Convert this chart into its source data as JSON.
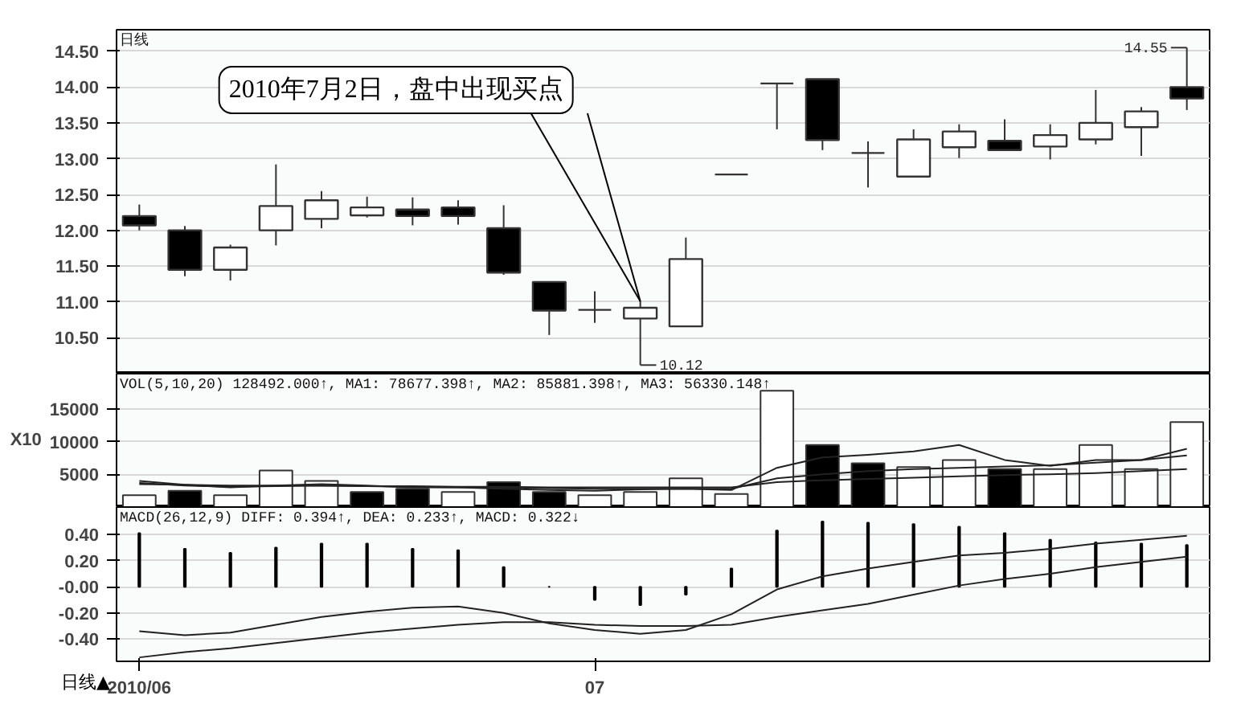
{
  "chart_data": [
    {
      "type": "candlestick",
      "title": "日线",
      "categories": [
        null,
        null,
        null,
        null,
        null,
        null,
        null,
        null,
        null,
        null,
        null,
        null,
        null,
        null,
        null,
        null,
        null,
        null,
        null,
        null,
        null,
        null,
        null,
        null
      ],
      "ohlc": [
        [
          12.2,
          12.36,
          12.0,
          12.07
        ],
        [
          12.0,
          12.06,
          11.36,
          11.45
        ],
        [
          11.45,
          11.8,
          11.3,
          11.76
        ],
        [
          12.0,
          12.92,
          11.79,
          12.34
        ],
        [
          12.16,
          12.55,
          12.03,
          12.42
        ],
        [
          12.21,
          12.47,
          12.18,
          12.32
        ],
        [
          12.29,
          12.46,
          12.07,
          12.2
        ],
        [
          12.32,
          12.42,
          12.08,
          12.2
        ],
        [
          12.03,
          12.35,
          11.38,
          11.41
        ],
        [
          11.28,
          11.28,
          10.54,
          10.88
        ],
        [
          10.89,
          11.15,
          10.71,
          10.89
        ],
        [
          10.77,
          11.01,
          10.12,
          10.92
        ],
        [
          10.66,
          11.9,
          10.66,
          11.6
        ],
        [
          12.78,
          12.78,
          12.78,
          12.78
        ],
        [
          14.05,
          14.05,
          13.41,
          14.05
        ],
        [
          14.11,
          14.11,
          13.12,
          13.26
        ],
        [
          13.08,
          13.24,
          12.6,
          13.08
        ],
        [
          12.75,
          13.41,
          12.75,
          13.27
        ],
        [
          13.16,
          13.48,
          13.01,
          13.38
        ],
        [
          13.25,
          13.55,
          13.12,
          13.12
        ],
        [
          13.17,
          13.48,
          12.99,
          13.33
        ],
        [
          13.27,
          13.96,
          13.2,
          13.5
        ],
        [
          13.44,
          13.72,
          13.04,
          13.66
        ],
        [
          14.0,
          14.55,
          13.68,
          13.84
        ]
      ],
      "ylim": [
        10.0,
        14.8
      ],
      "yticks": [
        {
          "value": 10.5,
          "label": "10.50"
        },
        {
          "value": 11,
          "label": "11.00"
        },
        {
          "value": 11.5,
          "label": "11.50"
        },
        {
          "value": 12,
          "label": "12.00"
        },
        {
          "value": 12.5,
          "label": "12.50"
        },
        {
          "value": 13,
          "label": "13.00"
        },
        {
          "value": 13.5,
          "label": "13.50"
        },
        {
          "value": 14,
          "label": "14.00"
        },
        {
          "value": 14.5,
          "label": "14.50"
        }
      ],
      "grid": "y",
      "tick_labels": "y",
      "annotations": [
        "2010年7月2日，盘中出现买点",
        "14.55",
        "10.12"
      ]
    },
    {
      "type": "bar",
      "title": "VOL(5,10,20) 128492.000↑, MA1: 78677.398↑, MA2: 85881.398↑, MA3: 56330.148↑",
      "categories": [
        null,
        null,
        null,
        null,
        null,
        null,
        null,
        null,
        null,
        null,
        null,
        null,
        null,
        null,
        null,
        null,
        null,
        null,
        null,
        null,
        null,
        null,
        null,
        null
      ],
      "series": [
        {
          "type": "bar",
          "values": [
            1800,
            2500,
            1800,
            5600,
            4000,
            2300,
            2800,
            2300,
            3800,
            2300,
            1800,
            2300,
            4400,
            2000,
            17800,
            9500,
            6700,
            6100,
            7200,
            5800,
            5800,
            9500,
            5800,
            13000
          ],
          "colors": [
            "#ffffff",
            "#000000",
            "#ffffff",
            "#ffffff",
            "#ffffff",
            "#000000",
            "#000000",
            "#ffffff",
            "#000000",
            "#000000",
            "#ffffff",
            "#ffffff",
            "#ffffff",
            "#ffffff",
            "#ffffff",
            "#000000",
            "#000000",
            "#ffffff",
            "#ffffff",
            "#000000",
            "#ffffff",
            "#ffffff",
            "#ffffff",
            "#ffffff"
          ]
        },
        {
          "type": "line",
          "color": "#222222",
          "values": [
            4000,
            3400,
            3000,
            3300,
            3500,
            3300,
            3000,
            3000,
            2800,
            2600,
            2500,
            2700,
            2800,
            2600,
            6000,
            7600,
            8000,
            8500,
            9500,
            7200,
            6300,
            7200,
            7200,
            8900
          ]
        },
        {
          "type": "line",
          "color": "#222222",
          "values": [
            3700,
            3300,
            3100,
            3200,
            3300,
            3200,
            3100,
            3000,
            3000,
            2900,
            2800,
            2800,
            2800,
            2800,
            4400,
            5000,
            5500,
            5800,
            6000,
            6200,
            6400,
            6800,
            7200,
            7900
          ]
        },
        {
          "type": "line",
          "color": "#222222",
          "values": [
            3500,
            3400,
            3300,
            3300,
            3300,
            3200,
            3200,
            3100,
            3100,
            3000,
            3000,
            3000,
            3000,
            3000,
            3800,
            4100,
            4300,
            4500,
            4700,
            4900,
            5000,
            5200,
            5500,
            5800
          ]
        }
      ],
      "ylim": [
        0,
        20400
      ],
      "yticks": [
        5000,
        10000,
        15000
      ],
      "grid": "y",
      "tick_labels": "y",
      "ylabel": "X10"
    },
    {
      "type": "bar",
      "title": "MACD(26,12,9) DIFF: 0.394↑, DEA: 0.233↑, MACD: 0.322↓",
      "categories": [
        "2010/06",
        null,
        null,
        null,
        null,
        null,
        null,
        null,
        null,
        null,
        "07",
        null,
        null,
        null,
        null,
        null,
        null,
        null,
        null,
        null,
        null,
        null,
        null,
        null
      ],
      "series": [
        {
          "type": "bar",
          "color": "#000000",
          "values": [
            0.41,
            0.29,
            0.26,
            0.3,
            0.33,
            0.33,
            0.29,
            0.28,
            0.15,
            0.0,
            -0.1,
            -0.14,
            -0.06,
            0.14,
            0.43,
            0.5,
            0.49,
            0.48,
            0.46,
            0.41,
            0.36,
            0.34,
            0.33,
            0.32
          ]
        },
        {
          "type": "line",
          "color": "#222222",
          "values": [
            -0.34,
            -0.37,
            -0.35,
            -0.29,
            -0.23,
            -0.19,
            -0.16,
            -0.15,
            -0.2,
            -0.28,
            -0.33,
            -0.36,
            -0.33,
            -0.21,
            -0.02,
            0.08,
            0.14,
            0.19,
            0.24,
            0.26,
            0.29,
            0.33,
            0.36,
            0.39
          ]
        },
        {
          "type": "line",
          "color": "#222222",
          "values": [
            -0.54,
            -0.5,
            -0.47,
            -0.43,
            -0.39,
            -0.35,
            -0.32,
            -0.29,
            -0.27,
            -0.27,
            -0.29,
            -0.3,
            -0.3,
            -0.29,
            -0.23,
            -0.18,
            -0.13,
            -0.06,
            0.01,
            0.06,
            0.1,
            0.15,
            0.19,
            0.23
          ]
        }
      ],
      "ylim": [
        -0.57,
        0.61
      ],
      "yticks": [
        {
          "value": -0.4,
          "label": "-0.40"
        },
        {
          "value": -0.2,
          "label": "-0.20"
        },
        {
          "value": 0,
          "label": "-0.00"
        },
        {
          "value": 0.2,
          "label": "0.20"
        },
        {
          "value": 0.4,
          "label": "0.40"
        }
      ],
      "grid": "y",
      "annotations": [
        "日线▲"
      ]
    }
  ]
}
